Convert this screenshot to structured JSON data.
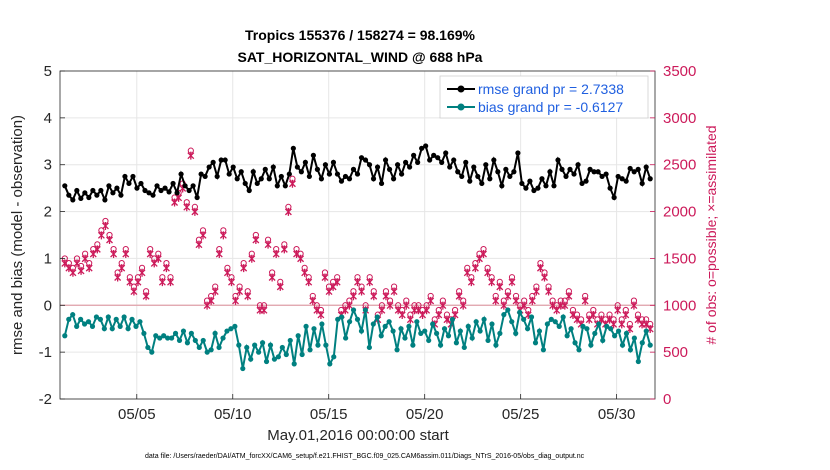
{
  "chart_data": {
    "type": "line",
    "title_line1": "Tropics 155376 / 158274 = 98.169%",
    "title_line2": "SAT_HORIZONTAL_WIND @ 688 hPa",
    "xlabel": "May.01,2016 00:00:00 start",
    "ylabel": "rmse and bias (model - observation)",
    "ylabel_right": "# of obs: o=possible; ×=assimilated",
    "footnote": "data file: /Users/raeder/DAI/ATM_forcXX/CAM6_setup/f.e21.FHIST_BGC.f09_025.CAM6assim.011/Diags_NTrS_2016-05/obs_diag_output.nc",
    "xticks": [
      "05/05",
      "05/10",
      "05/15",
      "05/20",
      "05/25",
      "05/30"
    ],
    "yticks": [
      "-2",
      "-1",
      "0",
      "1",
      "2",
      "3",
      "4",
      "5"
    ],
    "yticks_right": [
      "0",
      "500",
      "1000",
      "1500",
      "2000",
      "2500",
      "3000",
      "3500"
    ],
    "ylim": [
      -2,
      5
    ],
    "ylim_right": [
      0,
      3500
    ],
    "xlim": [
      1.0,
      32.0
    ],
    "x_unit": "days from May 01, 2016 00:00",
    "legend_position": "top-right",
    "grid": true,
    "colors": {
      "rmse": "#000000",
      "bias": "#008080",
      "obs": "#cc1a5a",
      "zero_line": "#e0a0a8",
      "legend_text": "#1f5fe0"
    },
    "series": [
      {
        "name": "rmse grand pr = 2.7338",
        "values": [
          2.55,
          2.35,
          2.25,
          2.45,
          2.28,
          2.4,
          2.3,
          2.45,
          2.35,
          2.45,
          2.25,
          2.55,
          2.4,
          2.5,
          2.35,
          2.75,
          2.6,
          2.75,
          2.5,
          2.6,
          2.45,
          2.4,
          2.35,
          2.55,
          2.45,
          2.5,
          2.42,
          2.6,
          2.4,
          2.8,
          2.55,
          2.45,
          2.55,
          2.3,
          2.8,
          2.75,
          2.95,
          3.05,
          2.75,
          3.1,
          3.1,
          2.8,
          2.95,
          2.7,
          2.85,
          2.6,
          2.45,
          2.85,
          2.6,
          2.7,
          2.9,
          2.7,
          2.95,
          2.55,
          2.75,
          2.55,
          2.8,
          3.35,
          2.95,
          2.85,
          3.05,
          2.75,
          3.2,
          2.9,
          2.7,
          3.0,
          2.8,
          3.05,
          2.8,
          2.65,
          2.75,
          2.7,
          2.9,
          2.8,
          3.15,
          3.1,
          3.0,
          2.7,
          2.95,
          2.6,
          3.1,
          2.9,
          2.7,
          3.0,
          2.8,
          3.05,
          2.95,
          3.2,
          3.05,
          3.35,
          3.4,
          3.1,
          3.2,
          3.15,
          3.05,
          3.25,
          2.95,
          3.1,
          2.85,
          2.75,
          3.05,
          2.65,
          2.95,
          2.75,
          2.6,
          3.0,
          2.7,
          3.1,
          2.85,
          2.55,
          2.9,
          2.75,
          2.85,
          3.25,
          2.6,
          2.5,
          2.65,
          2.45,
          2.5,
          2.7,
          2.55,
          2.85,
          2.55,
          3.1,
          2.9,
          2.75,
          2.9,
          2.8,
          3.0,
          2.6,
          2.65,
          2.9,
          2.85,
          2.85,
          2.75,
          2.8,
          2.5,
          2.3,
          2.75,
          2.7,
          2.65,
          2.92,
          2.85,
          2.9,
          2.6,
          2.95,
          2.7
        ]
      },
      {
        "name": "bias grand pr = -0.6127",
        "values": [
          -0.65,
          -0.3,
          -0.2,
          -0.45,
          -0.3,
          -0.4,
          -0.35,
          -0.45,
          -0.25,
          -0.3,
          -0.5,
          -0.25,
          -0.5,
          -0.3,
          -0.45,
          -0.25,
          -0.5,
          -0.3,
          -0.45,
          -0.35,
          -0.6,
          -0.9,
          -1.0,
          -0.65,
          -0.7,
          -0.65,
          -0.7,
          -0.7,
          -0.6,
          -0.75,
          -0.55,
          -0.8,
          -0.6,
          -0.75,
          -0.9,
          -0.75,
          -1.0,
          -0.95,
          -0.6,
          -0.9,
          -0.7,
          -0.55,
          -0.5,
          -0.45,
          -0.85,
          -1.35,
          -0.9,
          -1.15,
          -0.85,
          -1.0,
          -0.8,
          -1.2,
          -0.85,
          -1.15,
          -1.1,
          -0.9,
          -1.05,
          -0.75,
          -1.25,
          -0.65,
          -1.05,
          -0.45,
          -0.95,
          -0.5,
          -0.85,
          -0.4,
          -0.85,
          -1.25,
          -1.1,
          -0.3,
          -0.25,
          -0.7,
          -0.35,
          -0.1,
          -0.3,
          -0.55,
          -0.1,
          -0.9,
          -0.4,
          -0.25,
          -0.65,
          -0.45,
          -0.35,
          -0.55,
          -0.95,
          -0.5,
          -0.7,
          -0.45,
          -0.85,
          -0.35,
          -0.6,
          -0.55,
          -0.75,
          -0.4,
          -0.6,
          -0.85,
          -0.5,
          -0.65,
          -0.3,
          -0.8,
          -0.55,
          -0.9,
          -0.45,
          -0.7,
          -0.35,
          -0.55,
          -0.3,
          -0.75,
          -0.4,
          -0.85,
          -0.6,
          -0.2,
          -0.1,
          -0.35,
          -0.6,
          -0.15,
          -0.3,
          -0.5,
          -0.25,
          -0.8,
          -0.55,
          -0.95,
          -0.4,
          -0.3,
          -0.35,
          -0.45,
          -0.25,
          -0.65,
          -0.5,
          -0.8,
          -0.95,
          -0.45,
          -0.5,
          -0.85,
          -0.6,
          -0.4,
          -0.75,
          -0.45,
          -0.5,
          -0.65,
          -0.55,
          -0.85,
          -0.6,
          -0.95,
          -0.7,
          -1.2,
          -0.8,
          -0.55,
          -0.85
        ]
      },
      {
        "name": "possible obs count",
        "values": [
          1500,
          1450,
          1400,
          1500,
          1420,
          1550,
          1450,
          1600,
          1650,
          1800,
          1900,
          1750,
          1600,
          1350,
          1450,
          1600,
          1300,
          1200,
          1300,
          1400,
          1150,
          1600,
          1500,
          1550,
          1300,
          1450,
          1300,
          2150,
          2200,
          2300,
          2100,
          2650,
          2050,
          1700,
          1800,
          1050,
          1100,
          1200,
          1600,
          1800,
          1400,
          1300,
          1100,
          1200,
          1450,
          1150,
          1550,
          1750,
          1000,
          1000,
          1700,
          1350,
          1600,
          1250,
          1650,
          2050,
          2350,
          1600,
          1550,
          1400,
          1300,
          1100,
          1000,
          950,
          1350,
          1200,
          1250,
          1300,
          950,
          1000,
          1050,
          1150,
          1300,
          1200,
          1000,
          1300,
          1150,
          900,
          1000,
          1150,
          1050,
          1200,
          1000,
          950,
          1050,
          900,
          1000,
          1000,
          950,
          1000,
          1100,
          850,
          950,
          1050,
          900,
          850,
          950,
          1150,
          1050,
          1400,
          1300,
          1450,
          1550,
          1600,
          1400,
          1300,
          1100,
          1250,
          1050,
          1150,
          1300,
          1100,
          1000,
          1050,
          950,
          1100,
          1200,
          1450,
          1350,
          1200,
          1050,
          1000,
          1050,
          1050,
          1150,
          950,
          900,
          850,
          1100,
          900,
          950,
          850,
          900,
          850,
          900,
          850,
          1000,
          850,
          950,
          800,
          1050,
          900,
          850,
          850,
          800
        ]
      }
    ]
  }
}
